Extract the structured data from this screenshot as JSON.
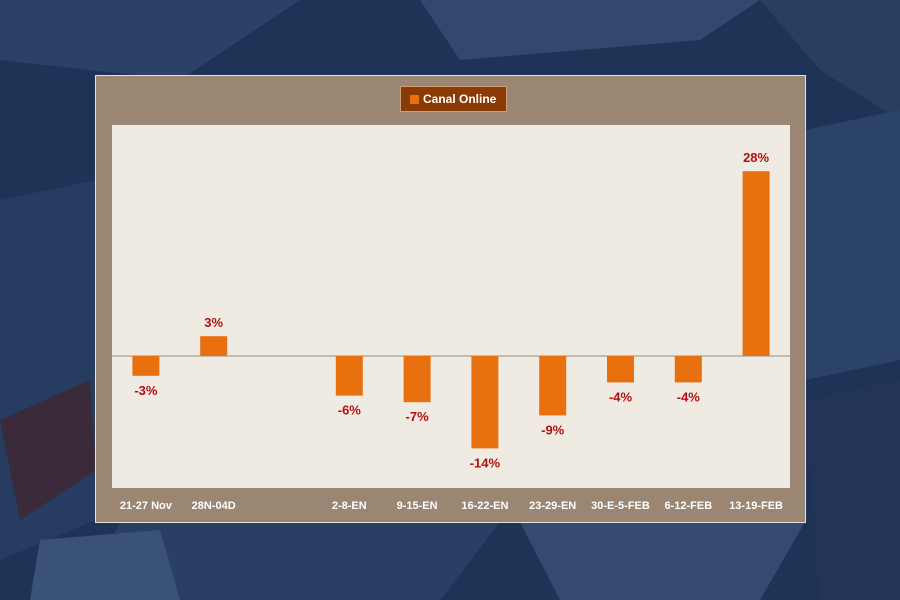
{
  "colors": {
    "bar": "#e8700e",
    "value_label": "#b01010",
    "plot_bg": "#efebe2",
    "frame": "#9a8673",
    "legend_bg": "#8a3a05",
    "page_bg": "#1f3357",
    "zero_line": "#9a8d80"
  },
  "legend": {
    "label": "Canal Online"
  },
  "chart_data": {
    "type": "bar",
    "categories": [
      "21-27 Nov",
      "28N-04D",
      "",
      "2-8-EN",
      "9-15-EN",
      "16-22-EN",
      "23-29-EN",
      "30-E-5-FEB",
      "6-12-FEB",
      "13-19-FEB"
    ],
    "series": [
      {
        "name": "Canal Online",
        "values": [
          -3,
          3,
          null,
          -6,
          -7,
          -14,
          -9,
          -4,
          -4,
          28
        ],
        "labels": [
          "-3%",
          "3%",
          "",
          "-6%",
          "-7%",
          "-14%",
          "-9%",
          "-4%",
          "-4%",
          "28%"
        ]
      }
    ],
    "ylim": [
      -20,
      35
    ],
    "grid": false,
    "legend_position": "top-center",
    "title": "",
    "xlabel": "",
    "ylabel": ""
  }
}
